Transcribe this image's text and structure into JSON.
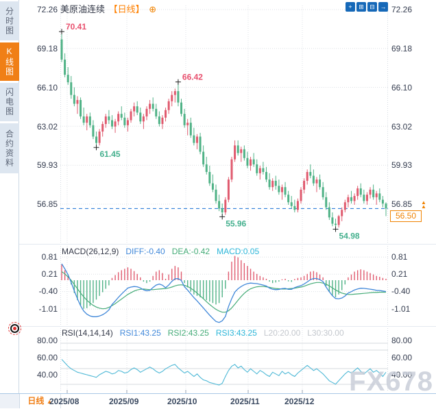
{
  "sidebar": {
    "items": [
      {
        "label": "分时图",
        "active": false
      },
      {
        "label": "K线图",
        "active": true
      },
      {
        "label": "闪电图",
        "active": false
      },
      {
        "label": "合约资料",
        "active": false
      }
    ]
  },
  "header": {
    "title": "美原油连续",
    "period_tag": "【日线】",
    "add_icon": "⊕",
    "toolbar": [
      {
        "name": "crosshair",
        "glyph": "+"
      },
      {
        "name": "zoom-in",
        "glyph": "⊞"
      },
      {
        "name": "zoom-out",
        "glyph": "⊟"
      },
      {
        "name": "pan-right",
        "glyph": "→"
      }
    ]
  },
  "main_axis": {
    "ticks": [
      "72.26",
      "69.18",
      "66.10",
      "63.02",
      "59.93",
      "56.85"
    ]
  },
  "price_marker": {
    "label": "56.50",
    "arrow": "▲"
  },
  "macd_panel": {
    "title": "MACD(26,12,9)",
    "diff_label": "DIFF:-0.40",
    "dea_label": "DEA:-0.42",
    "macd_label": "MACD:0.05",
    "ticks": [
      "0.81",
      "0.21",
      "-0.40",
      "-1.01"
    ]
  },
  "rsi_panel": {
    "title": "RSI(14,14,14)",
    "rsi1_label": "RSI1:43.25",
    "rsi2_label": "RSI2:43.25",
    "rsi3_label": "RSI3:43.25",
    "l20_label": "L20:20.00",
    "l30_label": "L30:30.00",
    "ticks": [
      "80.00",
      "60.00",
      "40.00"
    ]
  },
  "bottom_bar": {
    "period_button": "日线",
    "period_arrow": "▲",
    "dates": [
      "2025/08",
      "2025/09",
      "2025/10",
      "2025/11",
      "2025/12"
    ]
  },
  "watermark": "FX678",
  "colors": {
    "up": "#e05a6e",
    "down": "#4fb286",
    "high_label": "#e8506e",
    "low_label": "#45b08e",
    "accent_orange": "#f08200",
    "price_line_blue": "#2f7ed8",
    "diff_line": "#3f87d9",
    "dea_line": "#44ab77",
    "rsi_line": "#4db8d6",
    "grid": "#dcdfe4",
    "axis_text": "#333b4e"
  },
  "chart_data": [
    {
      "type": "candlestick",
      "title": "美原油连续 日线",
      "y_ticks": [
        72.26,
        69.18,
        66.1,
        63.02,
        59.93,
        56.85
      ],
      "x_tick_labels": [
        "2025/08",
        "2025/09",
        "2025/10",
        "2025/11",
        "2025/12"
      ],
      "current_price": 56.5,
      "annotations": [
        {
          "label": "70.41",
          "index": 0,
          "price": 70.41,
          "kind": "high"
        },
        {
          "label": "61.45",
          "index": 11,
          "price": 61.45,
          "kind": "low"
        },
        {
          "label": "66.42",
          "index": 37,
          "price": 66.42,
          "kind": "high"
        },
        {
          "label": "55.96",
          "index": 51,
          "price": 55.96,
          "kind": "low"
        },
        {
          "label": "54.98",
          "index": 87,
          "price": 54.98,
          "kind": "low"
        }
      ],
      "candles": [
        [
          69.9,
          70.41,
          68.1,
          68.3
        ],
        [
          68.3,
          68.8,
          66.9,
          67.1
        ],
        [
          67.1,
          67.7,
          66.3,
          66.5
        ],
        [
          66.5,
          67.0,
          65.2,
          65.5
        ],
        [
          65.5,
          66.1,
          64.6,
          64.8
        ],
        [
          64.8,
          65.4,
          64.0,
          65.1
        ],
        [
          65.1,
          65.3,
          63.6,
          63.8
        ],
        [
          63.8,
          64.5,
          63.1,
          63.3
        ],
        [
          63.3,
          64.0,
          62.7,
          63.8
        ],
        [
          63.8,
          64.1,
          62.9,
          63.1
        ],
        [
          63.1,
          63.5,
          62.0,
          62.2
        ],
        [
          62.2,
          62.6,
          61.45,
          61.7
        ],
        [
          61.7,
          62.8,
          61.5,
          62.6
        ],
        [
          62.6,
          63.4,
          62.2,
          63.2
        ],
        [
          63.2,
          64.0,
          62.9,
          63.8
        ],
        [
          63.8,
          64.3,
          63.2,
          63.5
        ],
        [
          63.5,
          63.9,
          62.8,
          63.0
        ],
        [
          63.0,
          63.6,
          62.5,
          63.4
        ],
        [
          63.4,
          64.2,
          63.1,
          64.0
        ],
        [
          64.0,
          64.6,
          63.5,
          63.7
        ],
        [
          63.7,
          64.1,
          62.9,
          63.1
        ],
        [
          63.1,
          63.7,
          62.6,
          63.5
        ],
        [
          63.5,
          64.4,
          63.3,
          64.2
        ],
        [
          64.2,
          64.9,
          63.8,
          64.6
        ],
        [
          64.6,
          65.0,
          63.9,
          64.1
        ],
        [
          64.1,
          64.5,
          63.2,
          63.4
        ],
        [
          63.4,
          64.0,
          62.8,
          63.8
        ],
        [
          63.8,
          64.6,
          63.5,
          64.4
        ],
        [
          64.4,
          65.1,
          64.0,
          64.8
        ],
        [
          64.8,
          65.3,
          64.2,
          64.4
        ],
        [
          64.4,
          64.8,
          63.6,
          63.8
        ],
        [
          63.8,
          64.2,
          63.0,
          63.2
        ],
        [
          63.2,
          63.9,
          62.8,
          63.7
        ],
        [
          63.7,
          64.5,
          63.4,
          64.3
        ],
        [
          64.3,
          65.2,
          64.0,
          65.0
        ],
        [
          65.0,
          65.8,
          64.6,
          65.5
        ],
        [
          65.5,
          66.0,
          64.9,
          65.8
        ],
        [
          65.8,
          66.42,
          64.6,
          64.9
        ],
        [
          64.9,
          65.2,
          63.8,
          64.0
        ],
        [
          64.0,
          64.4,
          62.9,
          63.1
        ],
        [
          63.1,
          63.6,
          62.3,
          63.3
        ],
        [
          63.3,
          63.7,
          62.1,
          62.3
        ],
        [
          62.3,
          62.9,
          61.5,
          61.7
        ],
        [
          61.7,
          62.4,
          61.2,
          62.2
        ],
        [
          62.2,
          62.5,
          60.8,
          61.0
        ],
        [
          61.0,
          61.5,
          59.8,
          60.0
        ],
        [
          60.0,
          60.6,
          59.2,
          59.4
        ],
        [
          59.4,
          59.9,
          58.3,
          58.5
        ],
        [
          58.5,
          59.2,
          57.8,
          58.0
        ],
        [
          58.0,
          58.4,
          56.9,
          57.1
        ],
        [
          57.1,
          57.6,
          56.3,
          56.5
        ],
        [
          56.5,
          56.9,
          55.96,
          56.2
        ],
        [
          56.2,
          57.4,
          56.0,
          57.2
        ],
        [
          57.2,
          59.0,
          57.0,
          58.8
        ],
        [
          58.8,
          60.6,
          58.6,
          60.4
        ],
        [
          60.4,
          61.9,
          60.2,
          61.5
        ],
        [
          61.5,
          61.9,
          60.7,
          60.9
        ],
        [
          60.9,
          61.4,
          60.2,
          61.2
        ],
        [
          61.2,
          61.5,
          60.3,
          60.5
        ],
        [
          60.5,
          61.0,
          59.7,
          59.9
        ],
        [
          59.9,
          60.6,
          59.5,
          60.4
        ],
        [
          60.4,
          60.9,
          59.8,
          60.0
        ],
        [
          60.0,
          60.4,
          59.1,
          59.3
        ],
        [
          59.3,
          59.9,
          58.8,
          59.7
        ],
        [
          59.7,
          60.2,
          59.2,
          59.4
        ],
        [
          59.4,
          59.8,
          58.6,
          58.8
        ],
        [
          58.8,
          59.3,
          58.0,
          58.2
        ],
        [
          58.2,
          58.9,
          57.9,
          58.7
        ],
        [
          58.7,
          59.1,
          58.0,
          58.3
        ],
        [
          58.3,
          58.8,
          57.6,
          57.8
        ],
        [
          57.8,
          58.4,
          57.2,
          58.2
        ],
        [
          58.2,
          58.6,
          57.4,
          57.6
        ],
        [
          57.6,
          57.9,
          56.8,
          57.0
        ],
        [
          57.0,
          57.5,
          56.5,
          56.7
        ],
        [
          56.7,
          57.2,
          56.2,
          56.4
        ],
        [
          56.4,
          57.3,
          56.2,
          57.1
        ],
        [
          57.1,
          58.2,
          56.9,
          58.0
        ],
        [
          58.0,
          58.9,
          57.7,
          58.7
        ],
        [
          58.7,
          59.6,
          58.4,
          59.4
        ],
        [
          59.4,
          60.0,
          58.9,
          59.1
        ],
        [
          59.1,
          59.6,
          58.3,
          58.5
        ],
        [
          58.5,
          59.0,
          57.8,
          58.8
        ],
        [
          58.8,
          59.2,
          58.0,
          58.2
        ],
        [
          58.2,
          58.6,
          57.2,
          57.4
        ],
        [
          57.4,
          57.8,
          56.4,
          56.6
        ],
        [
          56.6,
          57.0,
          55.6,
          55.8
        ],
        [
          55.8,
          56.2,
          55.1,
          55.3
        ],
        [
          55.3,
          55.7,
          54.98,
          55.2
        ],
        [
          55.2,
          56.0,
          55.0,
          55.9
        ],
        [
          55.9,
          56.6,
          55.5,
          56.4
        ],
        [
          56.4,
          57.2,
          56.2,
          57.0
        ],
        [
          57.0,
          57.6,
          56.6,
          57.4
        ],
        [
          57.4,
          57.9,
          56.9,
          57.1
        ],
        [
          57.1,
          57.7,
          56.8,
          57.5
        ],
        [
          57.5,
          58.3,
          57.2,
          58.1
        ],
        [
          58.1,
          58.5,
          57.4,
          57.6
        ],
        [
          57.6,
          58.0,
          56.9,
          57.1
        ],
        [
          57.1,
          57.8,
          56.8,
          57.6
        ],
        [
          57.6,
          58.2,
          57.3,
          58.0
        ],
        [
          58.0,
          58.4,
          57.2,
          57.4
        ],
        [
          57.4,
          57.9,
          56.8,
          57.7
        ],
        [
          57.7,
          58.1,
          57.0,
          57.2
        ],
        [
          57.2,
          57.5,
          56.6,
          56.9
        ],
        [
          56.9,
          57.0,
          55.9,
          56.5
        ]
      ]
    },
    {
      "type": "bar",
      "title": "MACD(26,12,9)",
      "params": {
        "diff": -0.4,
        "dea": -0.42,
        "macd": 0.05
      },
      "y_ticks": [
        0.81,
        0.21,
        -0.4,
        -1.01
      ],
      "histogram": [
        0.55,
        0.35,
        0.15,
        -0.15,
        -0.45,
        -0.7,
        -0.9,
        -1.0,
        -0.98,
        -0.9,
        -0.8,
        -0.68,
        -0.55,
        -0.42,
        -0.3,
        -0.18,
        0.08,
        0.18,
        0.28,
        0.35,
        0.4,
        0.45,
        0.4,
        0.32,
        0.22,
        0.1,
        -0.05,
        -0.1,
        -0.05,
        0.15,
        0.3,
        0.35,
        0.25,
        0.05,
        0.2,
        0.4,
        0.5,
        0.45,
        0.3,
        -0.1,
        -0.25,
        -0.4,
        -0.5,
        -0.55,
        -0.6,
        -0.65,
        -0.7,
        -0.75,
        -0.8,
        -0.85,
        -0.8,
        -0.6,
        -0.3,
        0.3,
        0.65,
        0.85,
        0.8,
        0.7,
        0.6,
        0.5,
        0.4,
        0.3,
        0.22,
        0.15,
        0.1,
        0.05,
        -0.05,
        -0.1,
        -0.08,
        -0.05,
        0.03,
        0.05,
        -0.04,
        -0.06,
        0.04,
        0.08,
        0.1,
        0.15,
        0.22,
        0.3,
        0.32,
        0.28,
        0.2,
        0.1,
        -0.2,
        -0.4,
        -0.55,
        -0.6,
        -0.5,
        -0.35,
        -0.15,
        0.1,
        0.2,
        0.3,
        0.35,
        0.38,
        0.35,
        0.3,
        0.25,
        0.2,
        0.15,
        0.12,
        0.08,
        0.05
      ],
      "dea": [
        0.3,
        0.22,
        0.12,
        0.0,
        -0.15,
        -0.3,
        -0.45,
        -0.58,
        -0.7,
        -0.8,
        -0.88,
        -0.94,
        -0.98,
        -1.0,
        -0.99,
        -0.95,
        -0.89,
        -0.82,
        -0.74,
        -0.66,
        -0.58,
        -0.5,
        -0.44,
        -0.38,
        -0.34,
        -0.32,
        -0.31,
        -0.32,
        -0.33,
        -0.33,
        -0.32,
        -0.31,
        -0.3,
        -0.29,
        -0.27,
        -0.24,
        -0.2,
        -0.17,
        -0.16,
        -0.18,
        -0.22,
        -0.28,
        -0.36,
        -0.45,
        -0.55,
        -0.65,
        -0.75,
        -0.85,
        -0.94,
        -1.02,
        -1.08,
        -1.12,
        -1.12,
        -1.07,
        -0.97,
        -0.84,
        -0.7,
        -0.57,
        -0.46,
        -0.37,
        -0.3,
        -0.26,
        -0.23,
        -0.22,
        -0.22,
        -0.23,
        -0.25,
        -0.27,
        -0.29,
        -0.3,
        -0.31,
        -0.31,
        -0.3,
        -0.29,
        -0.28,
        -0.26,
        -0.24,
        -0.21,
        -0.17,
        -0.13,
        -0.1,
        -0.08,
        -0.08,
        -0.1,
        -0.14,
        -0.2,
        -0.27,
        -0.34,
        -0.4,
        -0.45,
        -0.48,
        -0.5,
        -0.5,
        -0.49,
        -0.48,
        -0.47,
        -0.46,
        -0.45,
        -0.44,
        -0.43,
        -0.43,
        -0.42,
        -0.42,
        -0.42
      ]
    },
    {
      "type": "line",
      "title": "RSI(14,14,14)",
      "params": {
        "rsi1": 43.25,
        "rsi2": 43.25,
        "rsi3": 43.25,
        "l20": 20.0,
        "l30": 30.0
      },
      "y_ticks": [
        80,
        60,
        40
      ],
      "values": [
        58,
        54,
        50,
        47,
        45,
        43,
        42,
        41,
        40,
        39,
        38,
        37,
        40,
        42,
        44,
        43,
        41,
        42,
        45,
        44,
        42,
        43,
        46,
        48,
        46,
        43,
        45,
        47,
        49,
        47,
        44,
        42,
        44,
        47,
        49,
        51,
        52,
        48,
        45,
        42,
        44,
        41,
        38,
        41,
        37,
        34,
        33,
        31,
        30,
        29,
        28,
        30,
        38,
        45,
        50,
        52,
        48,
        50,
        46,
        43,
        47,
        44,
        41,
        45,
        43,
        40,
        38,
        43,
        41,
        39,
        44,
        41,
        43,
        40,
        38,
        42,
        45,
        48,
        51,
        48,
        45,
        47,
        44,
        41,
        37,
        33,
        31,
        29,
        33,
        37,
        41,
        44,
        42,
        45,
        48,
        44,
        41,
        44,
        47,
        43,
        45,
        42,
        38,
        43
      ]
    }
  ]
}
